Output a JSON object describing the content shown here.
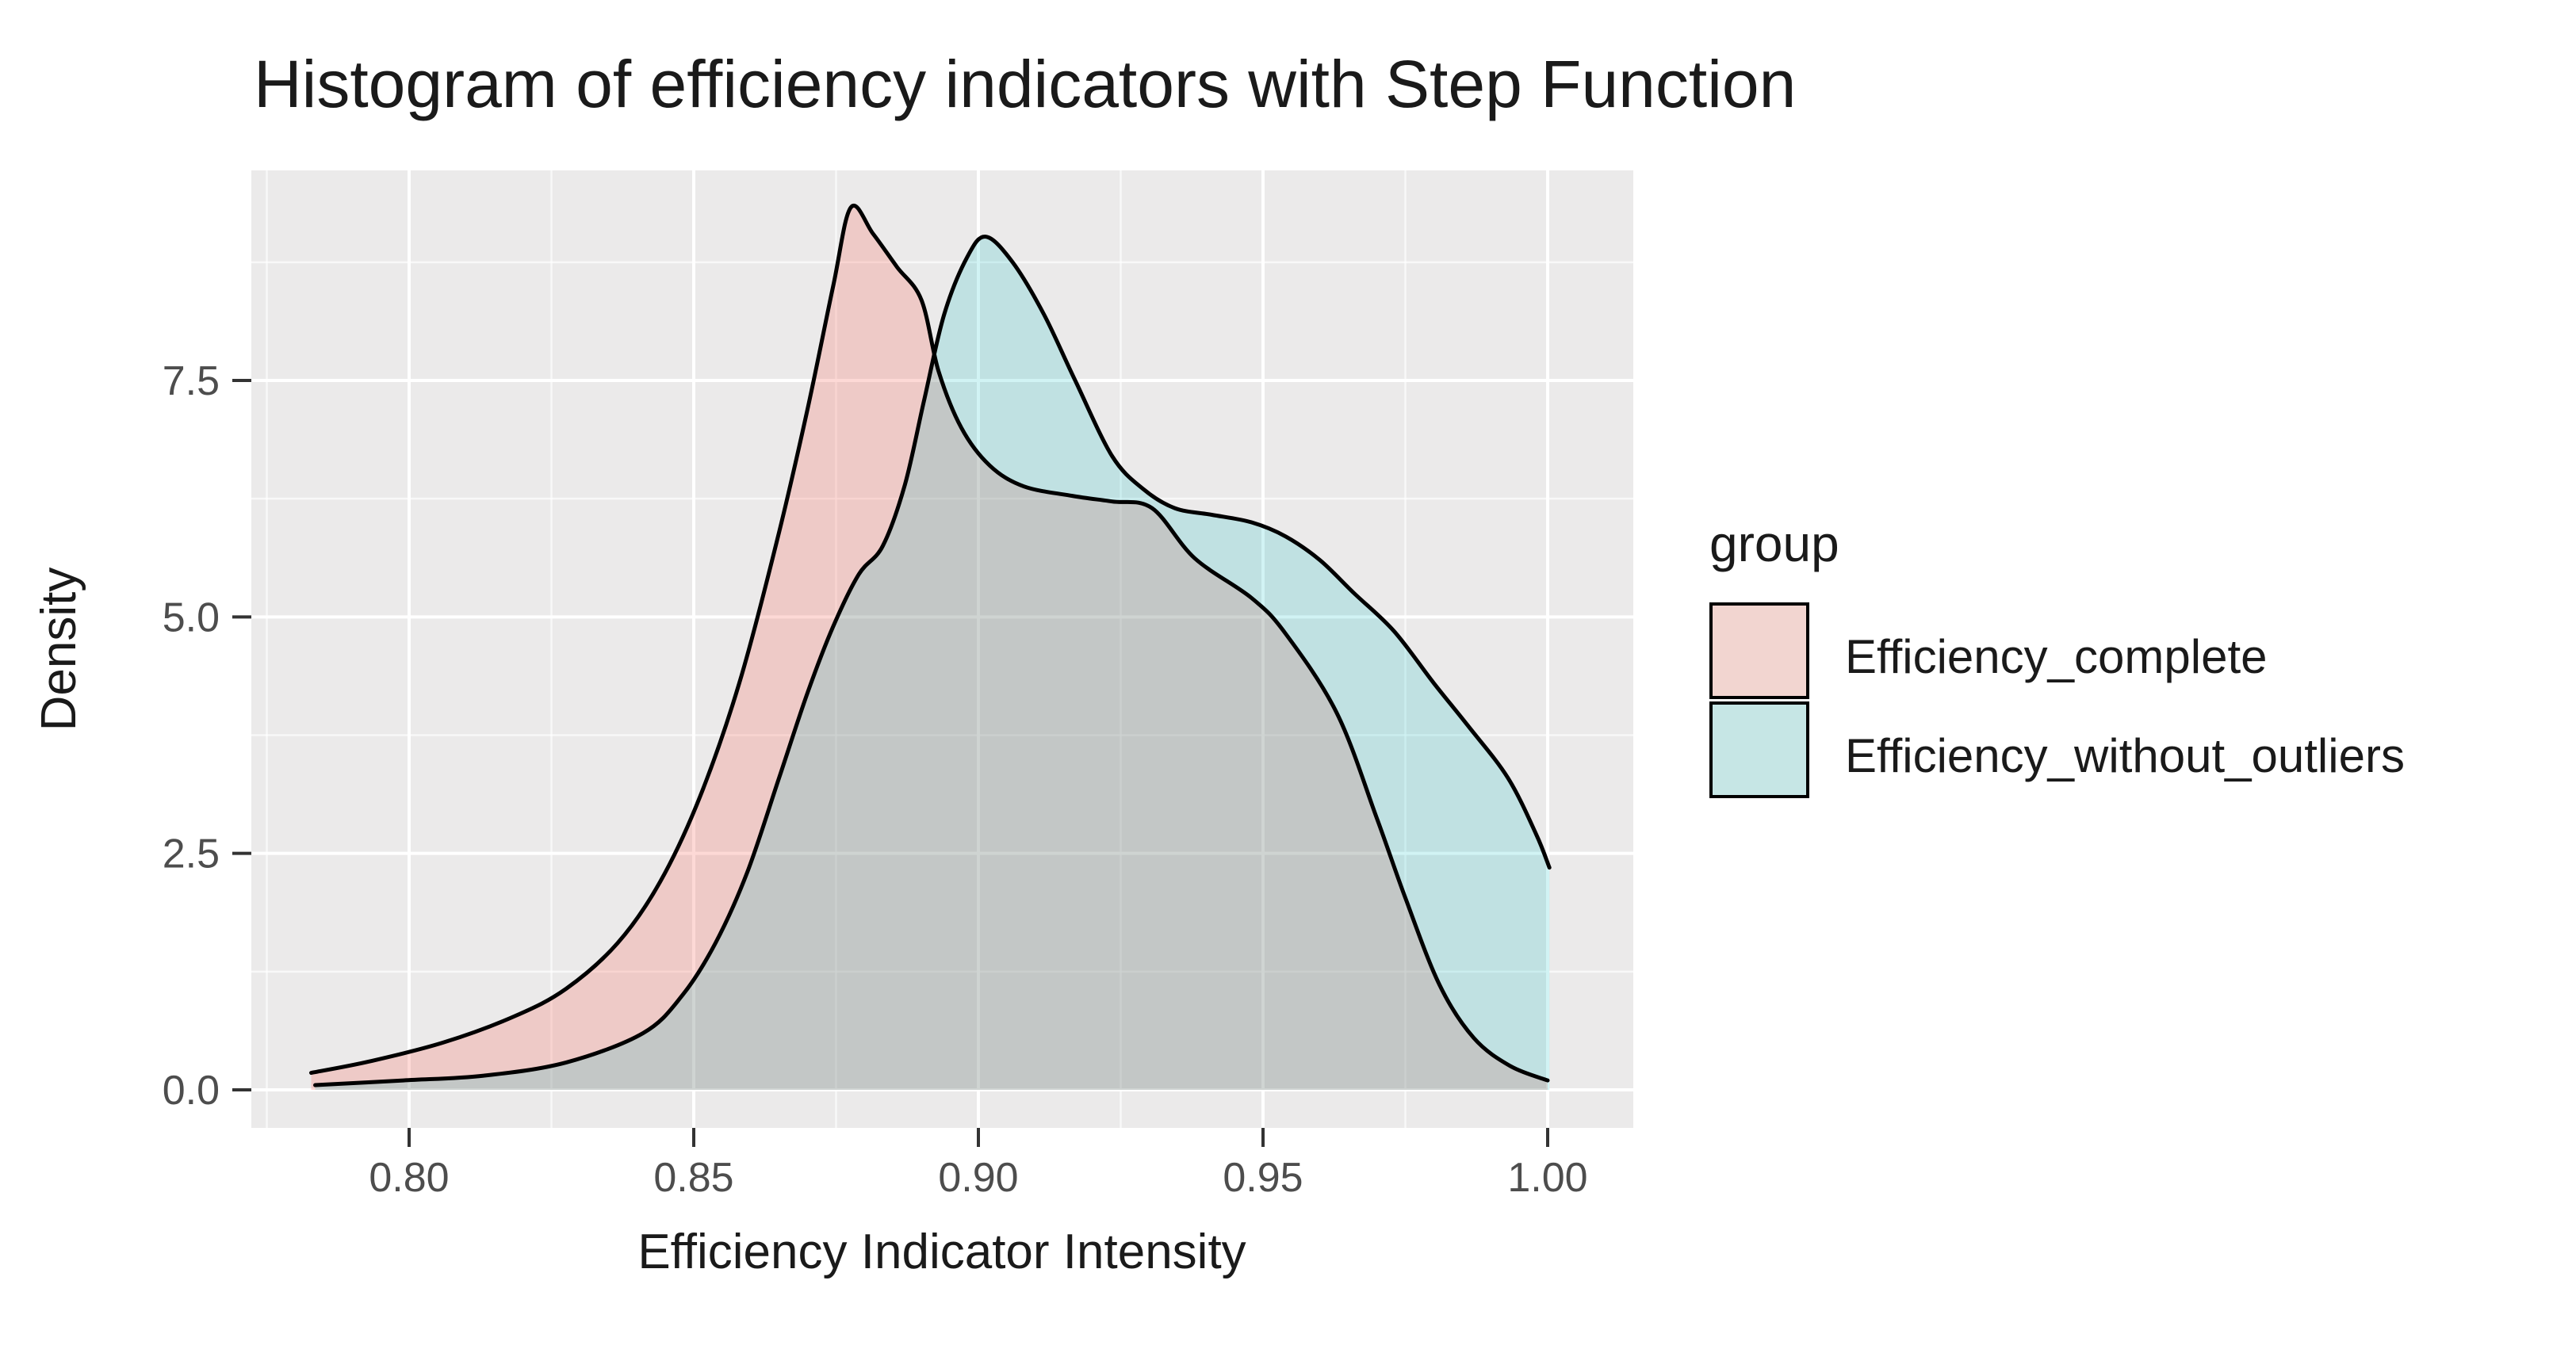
{
  "title": "Histogram of efficiency indicators with Step Function",
  "axes": {
    "x_label": "Efficiency Indicator Intensity",
    "y_label": "Density"
  },
  "legend": {
    "title": "group",
    "items": [
      {
        "label": "Efficiency_complete",
        "swatch_color": "#f2d5d0",
        "swatch_border": "#000000"
      },
      {
        "label": "Efficiency_without_outliers",
        "swatch_color": "#c6e6e5",
        "swatch_border": "#000000"
      }
    ]
  },
  "colors": {
    "background": "#ffffff",
    "panel_background": "#ebeaea",
    "grid_major": "#ffffff",
    "grid_minor": "rgba(255,255,255,0.65)",
    "curve_stroke": "#000000",
    "tick_mark": "#333333",
    "pink_fill": "rgba(248,118,109,0.28)",
    "blue_fill": "rgba(0,191,196,0.18)"
  },
  "chart_data": {
    "type": "area",
    "subtype": "overlaid-density-curves",
    "title": "Histogram of efficiency indicators with Step Function",
    "xlabel": "Efficiency Indicator Intensity",
    "ylabel": "Density",
    "xlim": [
      0.772,
      1.015
    ],
    "ylim": [
      -0.4,
      9.72
    ],
    "grid": true,
    "legend_position": "right",
    "x_ticks": [
      {
        "value": 0.8,
        "label": "0.80"
      },
      {
        "value": 0.85,
        "label": "0.85"
      },
      {
        "value": 0.9,
        "label": "0.90"
      },
      {
        "value": 0.95,
        "label": "0.95"
      },
      {
        "value": 1.0,
        "label": "1.00"
      }
    ],
    "y_ticks": [
      {
        "value": 0.0,
        "label": "0.0"
      },
      {
        "value": 2.5,
        "label": "2.5"
      },
      {
        "value": 5.0,
        "label": "5.0"
      },
      {
        "value": 7.5,
        "label": "7.5"
      }
    ],
    "x_minor": [
      0.775,
      0.825,
      0.875,
      0.925,
      0.975
    ],
    "y_minor": [
      1.25,
      3.75,
      6.25,
      8.75
    ],
    "series": [
      {
        "name": "Efficiency_complete",
        "fill": "rgba(248,118,109,0.28)",
        "stroke": "#000000",
        "points": [
          [
            0.7828,
            0.18
          ],
          [
            0.793,
            0.3
          ],
          [
            0.806,
            0.5
          ],
          [
            0.8186,
            0.78
          ],
          [
            0.8276,
            1.07
          ],
          [
            0.8366,
            1.55
          ],
          [
            0.8441,
            2.2
          ],
          [
            0.8511,
            3.1
          ],
          [
            0.858,
            4.3
          ],
          [
            0.8646,
            5.8
          ],
          [
            0.87,
            7.2
          ],
          [
            0.8745,
            8.5
          ],
          [
            0.8776,
            9.33
          ],
          [
            0.8815,
            9.05
          ],
          [
            0.8857,
            8.7
          ],
          [
            0.89,
            8.35
          ],
          [
            0.893,
            7.6
          ],
          [
            0.897,
            7.0
          ],
          [
            0.902,
            6.6
          ],
          [
            0.908,
            6.38
          ],
          [
            0.9165,
            6.28
          ],
          [
            0.9235,
            6.22
          ],
          [
            0.9305,
            6.15
          ],
          [
            0.938,
            5.62
          ],
          [
            0.948,
            5.2
          ],
          [
            0.954,
            4.82
          ],
          [
            0.963,
            3.98
          ],
          [
            0.97,
            2.87
          ],
          [
            0.975,
            2.03
          ],
          [
            0.981,
            1.11
          ],
          [
            0.987,
            0.55
          ],
          [
            0.9935,
            0.25
          ],
          [
            1.0,
            0.1
          ]
        ],
        "right_edge_drop": false
      },
      {
        "name": "Efficiency_without_outliers",
        "fill": "rgba(0,191,196,0.18)",
        "stroke": "#000000",
        "points": [
          [
            0.7835,
            0.05
          ],
          [
            0.799,
            0.1
          ],
          [
            0.8131,
            0.15
          ],
          [
            0.8276,
            0.29
          ],
          [
            0.8411,
            0.6
          ],
          [
            0.848,
            1.0
          ],
          [
            0.8538,
            1.55
          ],
          [
            0.8594,
            2.3
          ],
          [
            0.865,
            3.3
          ],
          [
            0.87,
            4.2
          ],
          [
            0.8745,
            4.9
          ],
          [
            0.879,
            5.45
          ],
          [
            0.8832,
            5.75
          ],
          [
            0.8871,
            6.4
          ],
          [
            0.8905,
            7.3
          ],
          [
            0.894,
            8.2
          ],
          [
            0.898,
            8.8
          ],
          [
            0.9013,
            9.02
          ],
          [
            0.906,
            8.75
          ],
          [
            0.9115,
            8.2
          ],
          [
            0.917,
            7.5
          ],
          [
            0.9235,
            6.7
          ],
          [
            0.929,
            6.35
          ],
          [
            0.9345,
            6.15
          ],
          [
            0.941,
            6.08
          ],
          [
            0.948,
            6.0
          ],
          [
            0.954,
            5.85
          ],
          [
            0.96,
            5.6
          ],
          [
            0.966,
            5.25
          ],
          [
            0.973,
            4.85
          ],
          [
            0.98,
            4.3
          ],
          [
            0.986,
            3.85
          ],
          [
            0.993,
            3.3
          ],
          [
            0.998,
            2.7
          ],
          [
            1.0003,
            2.35
          ]
        ],
        "right_edge_drop": true
      }
    ]
  }
}
